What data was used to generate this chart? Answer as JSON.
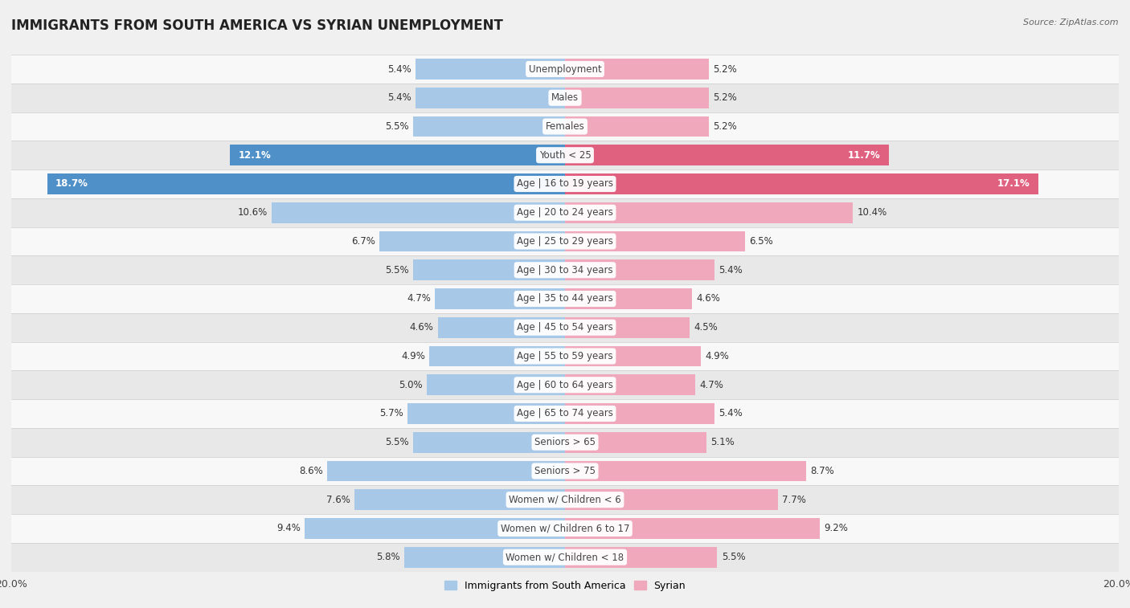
{
  "title": "IMMIGRANTS FROM SOUTH AMERICA VS SYRIAN UNEMPLOYMENT",
  "source": "Source: ZipAtlas.com",
  "categories": [
    "Unemployment",
    "Males",
    "Females",
    "Youth < 25",
    "Age | 16 to 19 years",
    "Age | 20 to 24 years",
    "Age | 25 to 29 years",
    "Age | 30 to 34 years",
    "Age | 35 to 44 years",
    "Age | 45 to 54 years",
    "Age | 55 to 59 years",
    "Age | 60 to 64 years",
    "Age | 65 to 74 years",
    "Seniors > 65",
    "Seniors > 75",
    "Women w/ Children < 6",
    "Women w/ Children 6 to 17",
    "Women w/ Children < 18"
  ],
  "left_values": [
    5.4,
    5.4,
    5.5,
    12.1,
    18.7,
    10.6,
    6.7,
    5.5,
    4.7,
    4.6,
    4.9,
    5.0,
    5.7,
    5.5,
    8.6,
    7.6,
    9.4,
    5.8
  ],
  "right_values": [
    5.2,
    5.2,
    5.2,
    11.7,
    17.1,
    10.4,
    6.5,
    5.4,
    4.6,
    4.5,
    4.9,
    4.7,
    5.4,
    5.1,
    8.7,
    7.7,
    9.2,
    5.5
  ],
  "left_color_normal": "#a8c8e8",
  "right_color_normal": "#f0a8bc",
  "left_color_highlight": "#5090c8",
  "right_color_highlight": "#e06080",
  "highlight_rows": [
    3,
    4
  ],
  "bg_color": "#f0f0f0",
  "row_bg_even": "#f8f8f8",
  "row_bg_odd": "#e8e8e8",
  "max_value": 20.0,
  "legend_left": "Immigrants from South America",
  "legend_right": "Syrian",
  "title_fontsize": 12,
  "label_fontsize": 8.5,
  "value_fontsize": 8.5
}
